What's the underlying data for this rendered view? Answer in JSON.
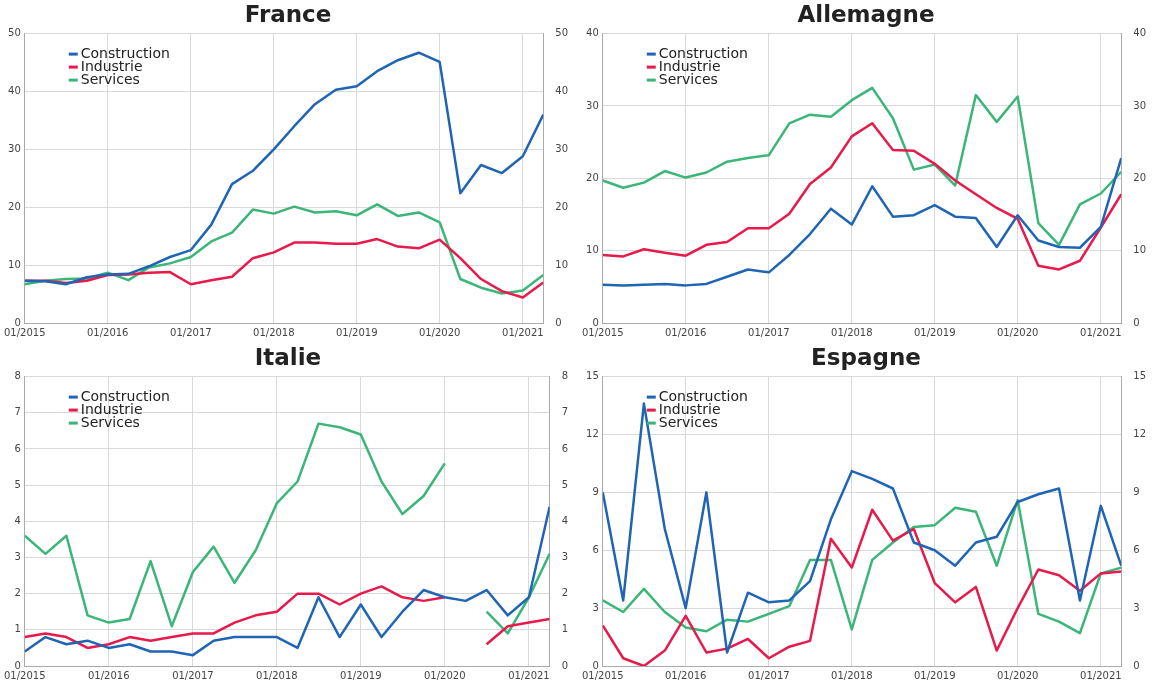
{
  "chart_data": [
    {
      "type": "line",
      "title": "France",
      "x": [
        "2015-01",
        "2015-04",
        "2015-07",
        "2015-10",
        "2016-01",
        "2016-04",
        "2016-07",
        "2016-10",
        "2017-01",
        "2017-04",
        "2017-07",
        "2017-10",
        "2018-01",
        "2018-04",
        "2018-07",
        "2018-10",
        "2019-01",
        "2019-04",
        "2019-07",
        "2019-10",
        "2020-01",
        "2020-04",
        "2020-07",
        "2020-10",
        "2021-01",
        "2021-04"
      ],
      "xlim": [
        "2015-01",
        "2021-04"
      ],
      "xticks": [
        {
          "value": "2015-01",
          "label": "01/2015"
        },
        {
          "value": "2016-01",
          "label": "01/2016"
        },
        {
          "value": "2017-01",
          "label": "01/2017"
        },
        {
          "value": "2018-01",
          "label": "01/2018"
        },
        {
          "value": "2019-01",
          "label": "01/2019"
        },
        {
          "value": "2020-01",
          "label": "01/2020"
        },
        {
          "value": "2021-01",
          "label": "01/2021"
        }
      ],
      "ylim": [
        0,
        50
      ],
      "yticks": [
        0,
        10,
        20,
        30,
        40,
        50
      ],
      "y2lim": [
        0,
        50
      ],
      "y2ticks": [
        0,
        10,
        20,
        30,
        40,
        50
      ],
      "grid": true,
      "legend": "top left",
      "series": [
        {
          "name": "Construction",
          "color": "#1f65b4",
          "values": [
            7.3,
            7.2,
            6.7,
            7.9,
            8.4,
            8.5,
            9.8,
            11.4,
            12.6,
            17,
            24,
            26.3,
            30,
            34,
            37.8,
            40.3,
            40.9,
            43.5,
            45.4,
            46.7,
            45.1,
            22.4,
            27.3,
            25.9,
            28.8,
            36
          ]
        },
        {
          "name": "Industrie",
          "color": "#e8194b",
          "values": [
            7.3,
            7.3,
            6.9,
            7.3,
            8.3,
            8.4,
            8.7,
            8.8,
            6.7,
            7.4,
            8,
            11.2,
            12.2,
            13.9,
            13.9,
            13.7,
            13.7,
            14.5,
            13.2,
            12.9,
            14.4,
            11.2,
            7.6,
            5.5,
            4.4,
            7
          ]
        },
        {
          "name": "Services",
          "color": "#3bb678",
          "values": [
            6.7,
            7.3,
            7.6,
            7.7,
            8.7,
            7.4,
            9.6,
            10.3,
            11.4,
            14.1,
            15.6,
            19.6,
            18.9,
            20.1,
            19.1,
            19.3,
            18.6,
            20.5,
            18.5,
            19.1,
            17.4,
            7.6,
            6.1,
            5.1,
            5.6,
            8.3
          ]
        }
      ]
    },
    {
      "type": "line",
      "title": "Allemagne",
      "x": [
        "2015-01",
        "2015-04",
        "2015-07",
        "2015-10",
        "2016-01",
        "2016-04",
        "2016-07",
        "2016-10",
        "2017-01",
        "2017-04",
        "2017-07",
        "2017-10",
        "2018-01",
        "2018-04",
        "2018-07",
        "2018-10",
        "2019-01",
        "2019-04",
        "2019-07",
        "2019-10",
        "2020-01",
        "2020-04",
        "2020-07",
        "2020-10",
        "2021-01",
        "2021-04"
      ],
      "xlim": [
        "2015-01",
        "2021-04"
      ],
      "xticks": [
        {
          "value": "2015-01",
          "label": "01/2015"
        },
        {
          "value": "2016-01",
          "label": "01/2016"
        },
        {
          "value": "2017-01",
          "label": "01/2017"
        },
        {
          "value": "2018-01",
          "label": "01/2018"
        },
        {
          "value": "2019-01",
          "label": "01/2019"
        },
        {
          "value": "2020-01",
          "label": "01/2020"
        },
        {
          "value": "2021-01",
          "label": "01/2021"
        }
      ],
      "ylim": [
        0,
        40
      ],
      "yticks": [
        0,
        10,
        20,
        30,
        40
      ],
      "y2lim": [
        0,
        40
      ],
      "y2ticks": [
        0,
        10,
        20,
        30,
        40
      ],
      "grid": true,
      "legend": "top left",
      "series": [
        {
          "name": "Construction",
          "color": "#1f65b4",
          "values": [
            5.3,
            5.2,
            5.3,
            5.4,
            5.2,
            5.4,
            6.4,
            7.4,
            7,
            9.4,
            12.3,
            15.8,
            13.6,
            18.9,
            14.7,
            14.9,
            16.3,
            14.7,
            14.5,
            10.5,
            14.9,
            11.4,
            10.5,
            10.4,
            13.3,
            22.8
          ]
        },
        {
          "name": "Industrie",
          "color": "#e8194b",
          "values": [
            9.4,
            9.2,
            10.2,
            9.7,
            9.3,
            10.8,
            11.2,
            13.1,
            13.1,
            15.1,
            19.2,
            21.5,
            25.8,
            27.6,
            23.9,
            23.8,
            22,
            19.7,
            17.8,
            15.9,
            14.4,
            7.9,
            7.4,
            8.6,
            13.2,
            17.8
          ]
        },
        {
          "name": "Services",
          "color": "#3bb678",
          "values": [
            19.7,
            18.7,
            19.4,
            21,
            20.1,
            20.8,
            22.3,
            22.8,
            23.2,
            27.6,
            28.8,
            28.5,
            30.8,
            32.5,
            28.3,
            21.2,
            21.9,
            19,
            31.5,
            27.8,
            31.3,
            13.8,
            10.8,
            16.4,
            17.9,
            20.9
          ]
        }
      ]
    },
    {
      "type": "line",
      "title": "Italie",
      "x": [
        "2015-01",
        "2015-04",
        "2015-07",
        "2015-10",
        "2016-01",
        "2016-04",
        "2016-07",
        "2016-10",
        "2017-01",
        "2017-04",
        "2017-07",
        "2017-10",
        "2018-01",
        "2018-04",
        "2018-07",
        "2018-10",
        "2019-01",
        "2019-04",
        "2019-07",
        "2019-10",
        "2020-01",
        "2020-04",
        "2020-07",
        "2020-10",
        "2021-01",
        "2021-04"
      ],
      "xlim": [
        "2015-01",
        "2021-04"
      ],
      "xticks": [
        {
          "value": "2015-01",
          "label": "01/2015"
        },
        {
          "value": "2016-01",
          "label": "01/2016"
        },
        {
          "value": "2017-01",
          "label": "01/2017"
        },
        {
          "value": "2018-01",
          "label": "01/2018"
        },
        {
          "value": "2019-01",
          "label": "01/2019"
        },
        {
          "value": "2020-01",
          "label": "01/2020"
        },
        {
          "value": "2021-01",
          "label": "01/2021"
        }
      ],
      "ylim": [
        0,
        8
      ],
      "yticks": [
        0,
        1,
        2,
        3,
        4,
        5,
        6,
        7,
        8
      ],
      "y2lim": [
        0,
        8
      ],
      "y2ticks": [
        0,
        1,
        2,
        3,
        4,
        5,
        6,
        7,
        8
      ],
      "grid": true,
      "legend": "top left",
      "series": [
        {
          "name": "Construction",
          "color": "#1f65b4",
          "values": [
            0.4,
            0.8,
            0.6,
            0.7,
            0.5,
            0.6,
            0.4,
            0.4,
            0.3,
            0.7,
            0.8,
            0.8,
            0.8,
            0.5,
            1.9,
            0.8,
            1.7,
            0.8,
            1.5,
            2.1,
            1.9,
            1.8,
            2.1,
            1.4,
            1.9,
            4.4
          ]
        },
        {
          "name": "Industrie",
          "color": "#e8194b",
          "values": [
            0.8,
            0.9,
            0.8,
            0.5,
            0.6,
            0.8,
            0.7,
            0.8,
            0.9,
            0.9,
            1.2,
            1.4,
            1.5,
            2,
            2,
            1.7,
            2,
            2.2,
            1.9,
            1.8,
            1.9,
            null,
            0.6,
            1.1,
            1.2,
            1.3
          ]
        },
        {
          "name": "Services",
          "color": "#3bb678",
          "values": [
            3.6,
            3.1,
            3.6,
            1.4,
            1.2,
            1.3,
            2.9,
            1.1,
            2.6,
            3.3,
            2.3,
            3.2,
            4.5,
            5.1,
            6.7,
            6.6,
            6.4,
            5.1,
            4.2,
            4.7,
            5.6,
            null,
            1.5,
            0.9,
            1.9,
            3.1
          ]
        }
      ]
    },
    {
      "type": "line",
      "title": "Espagne",
      "x": [
        "2015-01",
        "2015-04",
        "2015-07",
        "2015-10",
        "2016-01",
        "2016-04",
        "2016-07",
        "2016-10",
        "2017-01",
        "2017-04",
        "2017-07",
        "2017-10",
        "2018-01",
        "2018-04",
        "2018-07",
        "2018-10",
        "2019-01",
        "2019-04",
        "2019-07",
        "2019-10",
        "2020-01",
        "2020-04",
        "2020-07",
        "2020-10",
        "2021-01",
        "2021-04"
      ],
      "xlim": [
        "2015-01",
        "2021-04"
      ],
      "xticks": [
        {
          "value": "2015-01",
          "label": "01/2015"
        },
        {
          "value": "2016-01",
          "label": "01/2016"
        },
        {
          "value": "2017-01",
          "label": "01/2017"
        },
        {
          "value": "2018-01",
          "label": "01/2018"
        },
        {
          "value": "2019-01",
          "label": "01/2019"
        },
        {
          "value": "2020-01",
          "label": "01/2020"
        },
        {
          "value": "2021-01",
          "label": "01/2021"
        }
      ],
      "ylim": [
        0,
        15
      ],
      "yticks": [
        0,
        3,
        6,
        9,
        12,
        15
      ],
      "y2lim": [
        0,
        15
      ],
      "y2ticks": [
        0,
        3,
        6,
        9,
        12,
        15
      ],
      "grid": true,
      "legend": "top left",
      "series": [
        {
          "name": "Construction",
          "color": "#1f65b4",
          "values": [
            9,
            3.4,
            13.6,
            7.1,
            3,
            9,
            0.7,
            3.8,
            3.3,
            3.4,
            4.4,
            7.6,
            10.1,
            9.7,
            9.2,
            6.4,
            6,
            5.2,
            6.4,
            6.7,
            8.5,
            8.9,
            9.2,
            3.4,
            8.3,
            5.2
          ]
        },
        {
          "name": "Industrie",
          "color": "#e8194b",
          "values": [
            2.1,
            0.4,
            0,
            0.8,
            2.6,
            0.7,
            0.9,
            1.4,
            0.4,
            1,
            1.3,
            6.6,
            5.1,
            8.1,
            6.5,
            7.1,
            4.3,
            3.3,
            4.1,
            0.8,
            3,
            5,
            4.7,
            3.9,
            4.8,
            4.9
          ]
        },
        {
          "name": "Services",
          "color": "#3bb678",
          "values": [
            3.4,
            2.8,
            4,
            2.8,
            2,
            1.8,
            2.4,
            2.3,
            2.7,
            3.1,
            5.5,
            5.5,
            1.9,
            5.5,
            6.4,
            7.2,
            7.3,
            8.2,
            8,
            5.2,
            8.6,
            2.7,
            2.3,
            1.7,
            4.8,
            5.1
          ]
        }
      ]
    }
  ]
}
